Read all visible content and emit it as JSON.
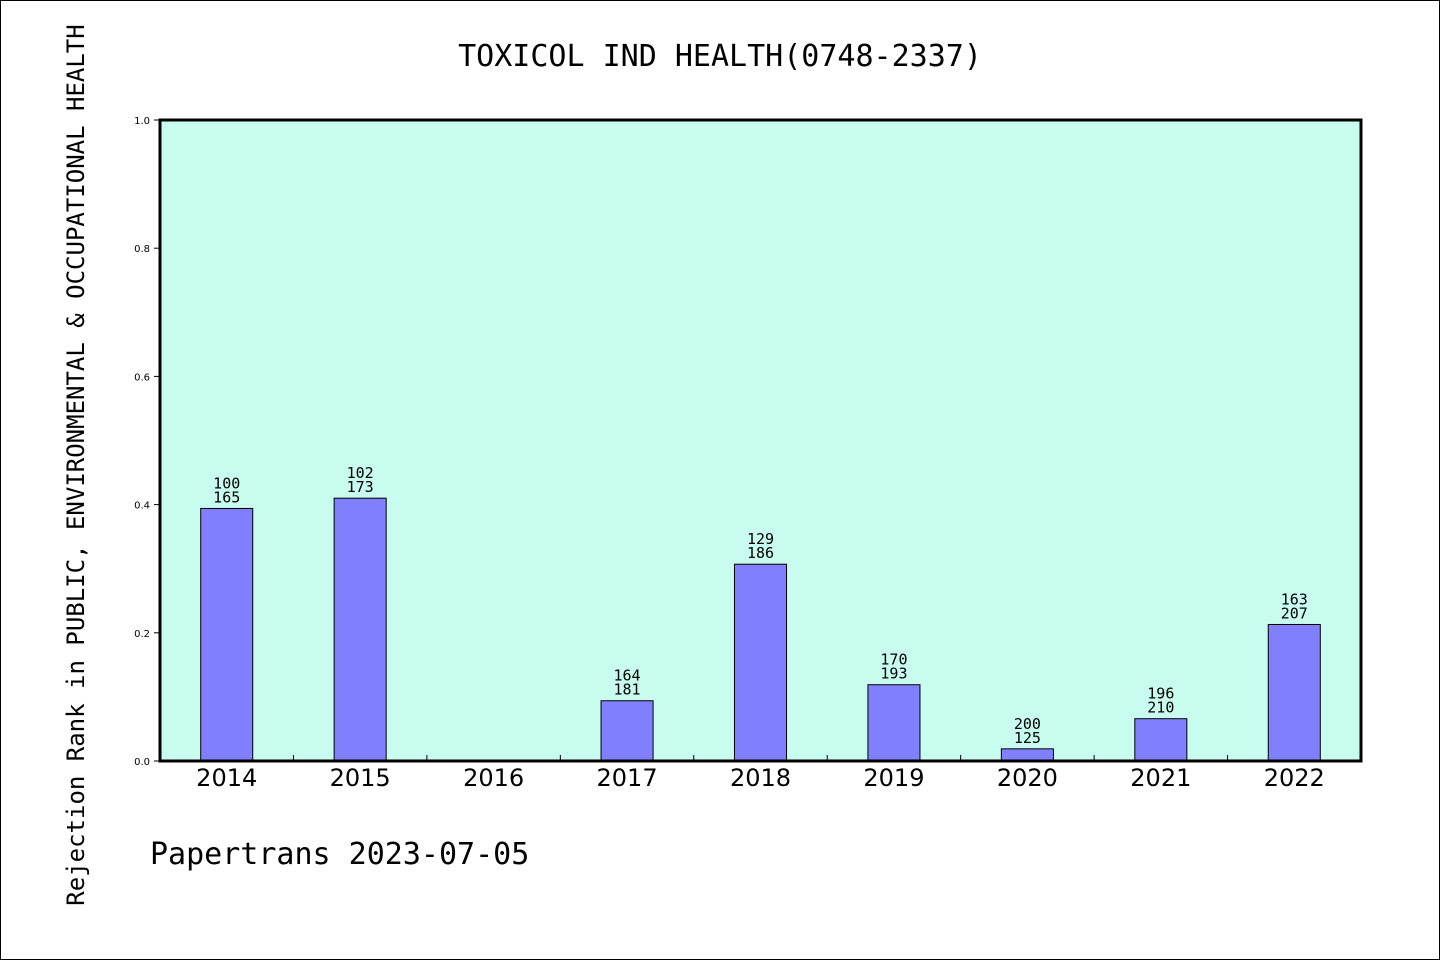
{
  "chart_data": {
    "type": "bar",
    "title": "TOXICOL IND HEALTH(0748-2337)",
    "ylabel": "Rejection Rank in PUBLIC, ENVIRONMENTAL & OCCUPATIONAL HEALTH",
    "xlabel": "",
    "footer": "Papertrans 2023-07-05",
    "categories": [
      "2014",
      "2015",
      "2016",
      "2017",
      "2018",
      "2019",
      "2020",
      "2021",
      "2022"
    ],
    "values": [
      0.394,
      0.41,
      null,
      0.094,
      0.307,
      0.119,
      0.019,
      0.066,
      0.213
    ],
    "labels_top": [
      "100",
      "102",
      "",
      "164",
      "129",
      "170",
      "200",
      "196",
      "163"
    ],
    "labels_bottom": [
      "165",
      "173",
      "",
      "181",
      "186",
      "193",
      "125",
      "210",
      "207"
    ],
    "ylim": [
      0,
      1.0
    ],
    "yticks": [
      "0.0",
      "0.2",
      "0.4",
      "0.6",
      "0.8",
      "1.0"
    ],
    "grid": false,
    "colors": {
      "plot_bg": "#c8fcee",
      "bar": "#8080ff",
      "bar_edge": "#000000"
    }
  }
}
